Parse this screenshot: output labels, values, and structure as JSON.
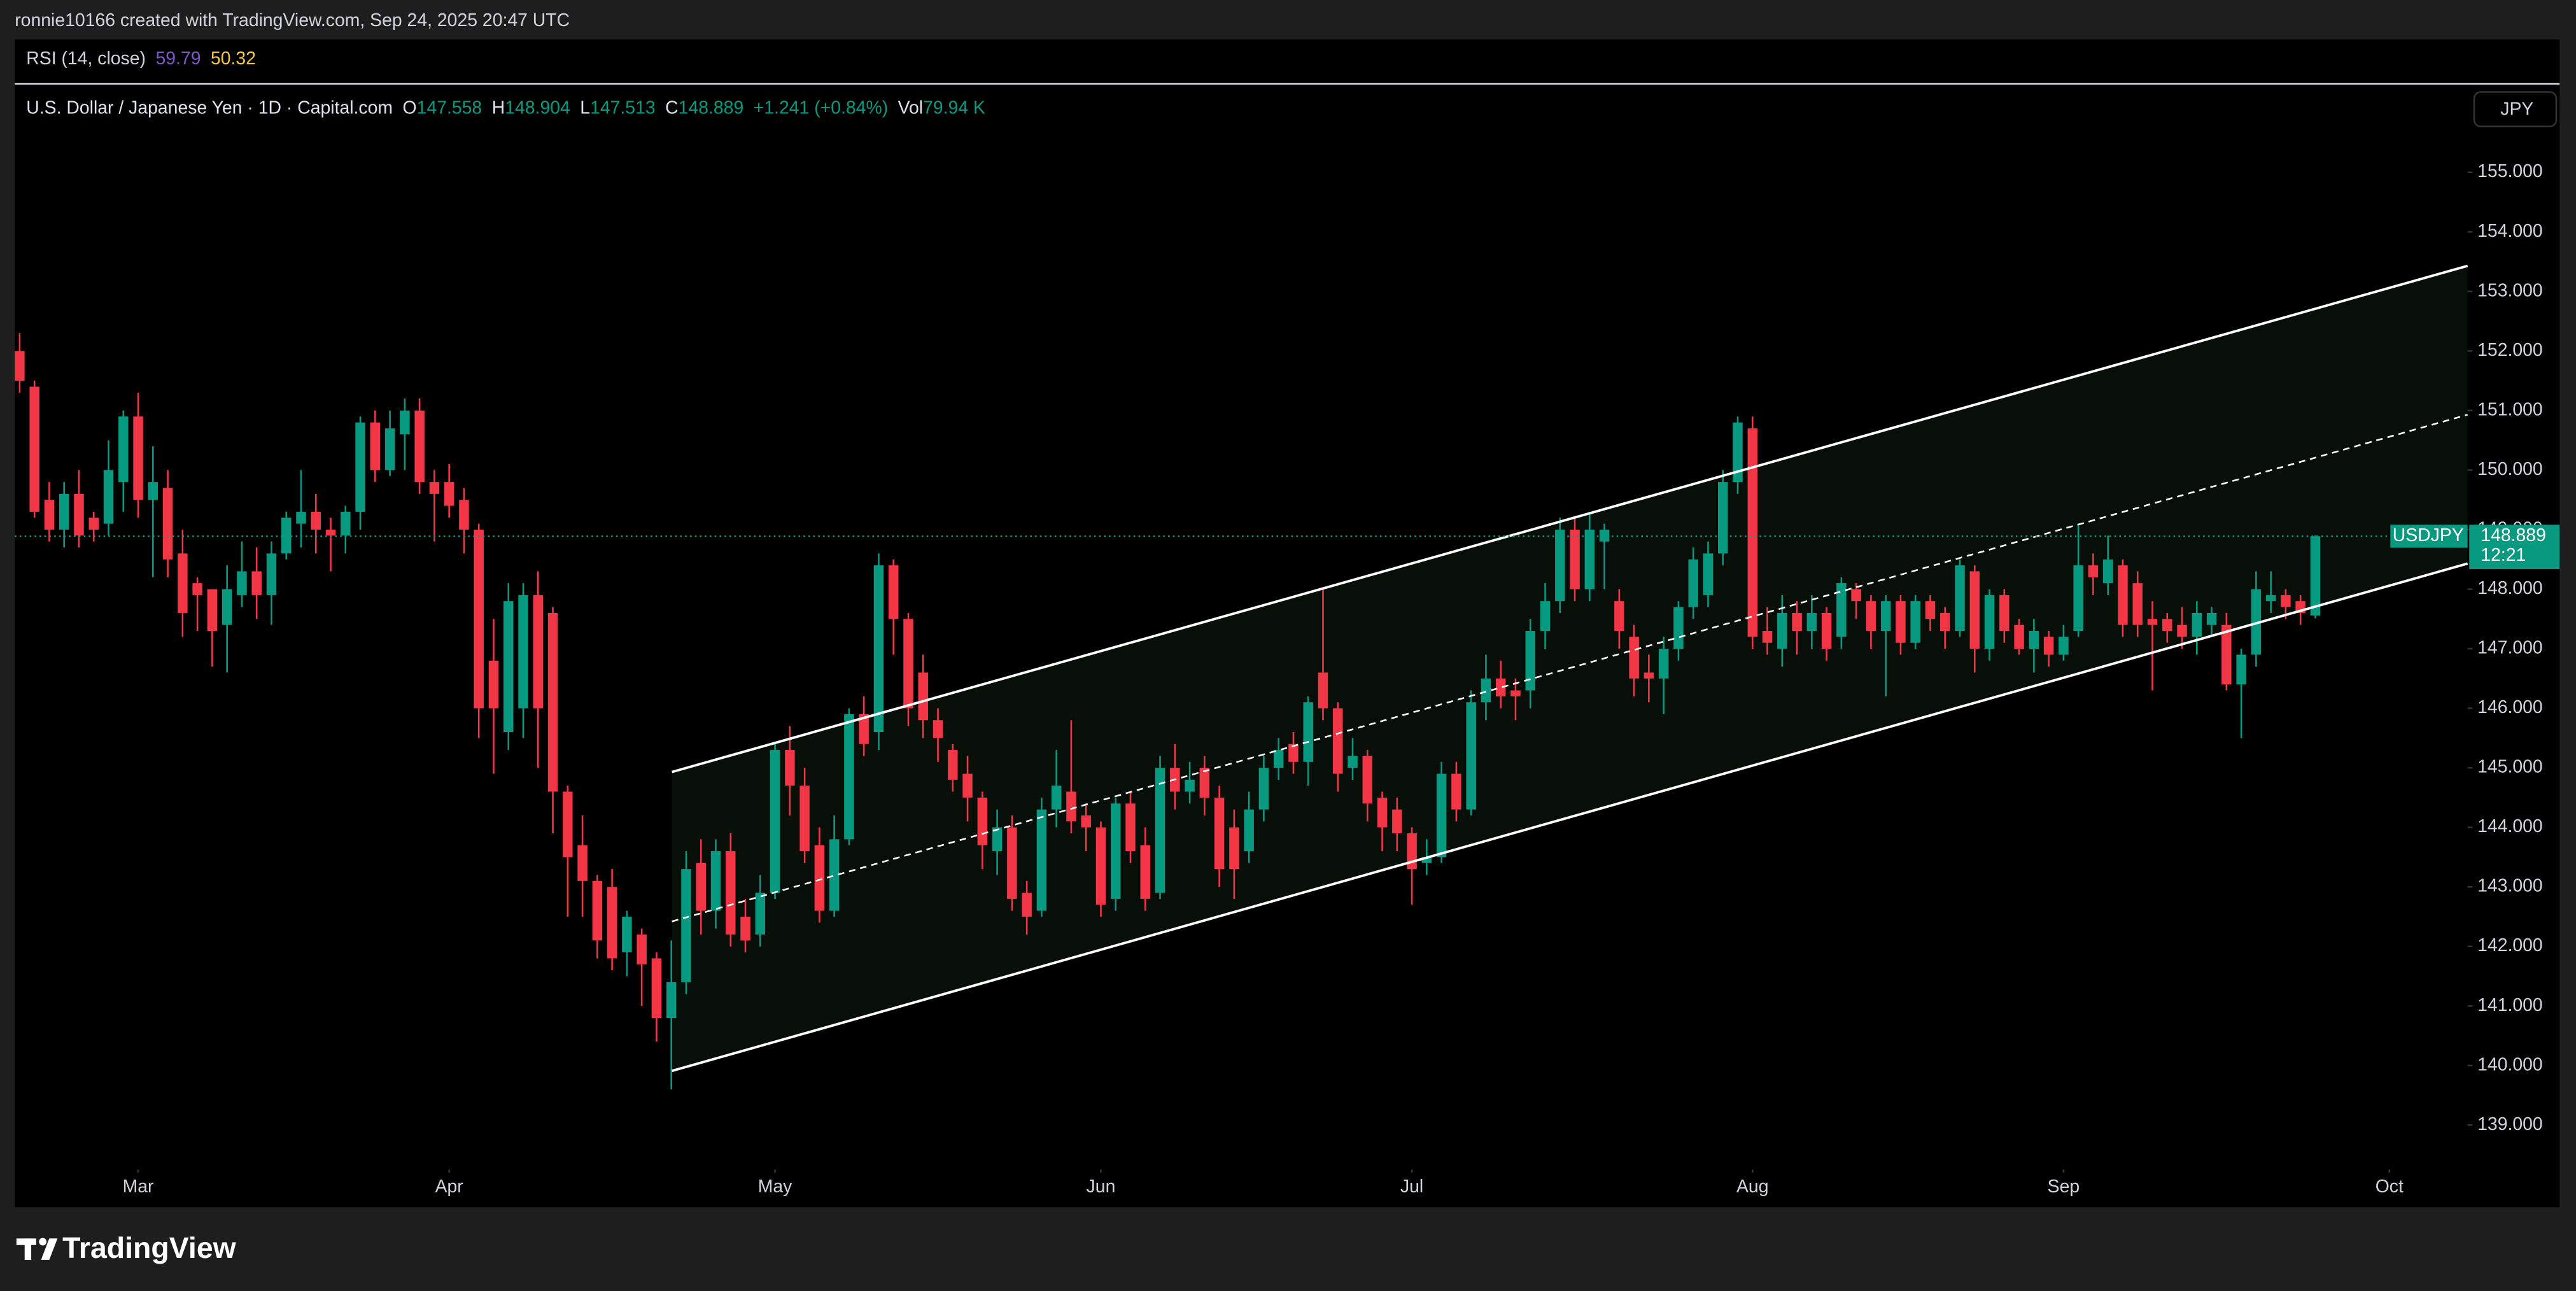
{
  "header": {
    "credit": "ronnie10166 created with TradingView.com, Sep 24, 2025 20:47 UTC",
    "logo": "TradingView"
  },
  "rsi": {
    "label": "RSI (14, close)",
    "values": [
      59.79,
      50.32
    ],
    "colors": [
      "#7e57c2",
      "#f6c745"
    ]
  },
  "chart_data": {
    "type": "candlestick",
    "title": "U.S. Dollar / Japanese Yen · 1D · Capital.com",
    "symbol": "USDJPY",
    "currency": "JPY",
    "field_labels": [
      "O",
      "H",
      "L",
      "C"
    ],
    "change": "+1.241 (+0.84%)",
    "volume_label": "Vol",
    "volume": "79.94 K",
    "countdown": "12:21",
    "up_color": "#089981",
    "down_color": "#f23645",
    "open": [
      152.0,
      151.4,
      149.5,
      149.0,
      149.6,
      149.2,
      149.1,
      149.8,
      150.9,
      149.5,
      149.7,
      148.6,
      148.1,
      148.0,
      147.4,
      147.9,
      148.3,
      147.9,
      148.6,
      149.1,
      149.3,
      149.0,
      148.9,
      149.3,
      150.8,
      150.0,
      150.6,
      151.0,
      149.8,
      149.8,
      149.5,
      149.0,
      146.8,
      145.6,
      146.0,
      147.9,
      147.6,
      144.6,
      143.7,
      143.1,
      143.0,
      141.9,
      142.2,
      141.8,
      140.8,
      141.4,
      143.4,
      142.6,
      143.6,
      142.5,
      142.2,
      142.9,
      145.3,
      144.7,
      143.7,
      142.6,
      143.8,
      145.9,
      145.6,
      148.4,
      147.5,
      146.6,
      145.8,
      145.3,
      144.9,
      144.5,
      143.6,
      144.0,
      142.9,
      142.6,
      144.3,
      144.6,
      144.2,
      144.0,
      142.8,
      144.4,
      143.7,
      142.9,
      145.0,
      144.6,
      145.0,
      144.5,
      144.0,
      143.6,
      144.3,
      145.0,
      145.4,
      145.1,
      146.6,
      146.0,
      145.0,
      145.2,
      144.5,
      144.3,
      143.9,
      143.4,
      143.5,
      144.9,
      144.3,
      146.1,
      146.5,
      146.3,
      146.3,
      147.3,
      147.8,
      149.0,
      148.0,
      148.8,
      147.8,
      147.2,
      146.6,
      146.5,
      147.0,
      147.7,
      147.9,
      148.6,
      149.8,
      150.7,
      147.3,
      147.0,
      147.6,
      147.3,
      147.6,
      147.2,
      148.0,
      147.8,
      147.3,
      147.8,
      147.1,
      147.8,
      147.6,
      147.3,
      148.3,
      147.0,
      147.9,
      147.4,
      147.0,
      147.2,
      146.9,
      147.3,
      148.4,
      148.1,
      148.4,
      148.1,
      147.5,
      147.5,
      147.4,
      147.2,
      147.4,
      147.4,
      146.4,
      146.9,
      147.8,
      147.9,
      147.8,
      147.558
    ],
    "high": [
      152.3,
      151.5,
      149.8,
      149.8,
      150.0,
      149.3,
      150.5,
      151.0,
      151.3,
      150.4,
      150.0,
      149.0,
      148.2,
      148.0,
      148.4,
      148.8,
      148.7,
      148.8,
      149.3,
      150.0,
      149.6,
      149.2,
      149.4,
      150.9,
      151.0,
      151.0,
      151.2,
      151.2,
      150.0,
      150.1,
      149.7,
      149.1,
      147.5,
      148.1,
      148.1,
      148.3,
      147.7,
      144.7,
      144.2,
      143.2,
      143.3,
      142.6,
      142.3,
      141.9,
      142.1,
      143.6,
      143.8,
      143.8,
      143.9,
      142.8,
      143.2,
      145.4,
      145.7,
      145.0,
      144.0,
      144.2,
      146.0,
      146.2,
      148.6,
      148.5,
      147.6,
      146.9,
      146.0,
      145.4,
      145.2,
      144.6,
      144.3,
      144.2,
      143.1,
      144.5,
      145.3,
      145.8,
      144.4,
      144.1,
      144.5,
      144.6,
      144.0,
      145.2,
      145.4,
      145.1,
      145.2,
      144.7,
      144.3,
      144.6,
      145.2,
      145.5,
      145.6,
      146.2,
      148.0,
      146.1,
      145.5,
      145.3,
      144.6,
      144.5,
      144.0,
      143.8,
      145.1,
      145.1,
      146.3,
      146.9,
      146.8,
      146.5,
      147.5,
      148.1,
      149.2,
      149.2,
      149.3,
      149.1,
      148.0,
      147.4,
      146.9,
      147.2,
      147.8,
      148.7,
      148.8,
      150.0,
      150.9,
      150.9,
      147.7,
      147.9,
      147.8,
      147.9,
      147.7,
      148.2,
      148.1,
      147.9,
      147.9,
      147.9,
      147.9,
      147.9,
      147.7,
      148.5,
      148.4,
      148.0,
      148.0,
      147.5,
      147.5,
      147.3,
      147.4,
      149.1,
      148.6,
      148.9,
      148.5,
      148.3,
      147.8,
      147.6,
      147.7,
      147.8,
      147.7,
      147.6,
      147.0,
      148.3,
      148.3,
      148.0,
      147.9,
      148.904
    ],
    "low": [
      151.3,
      149.2,
      148.8,
      148.7,
      148.7,
      148.8,
      148.9,
      149.3,
      149.2,
      148.2,
      148.2,
      147.2,
      147.3,
      146.7,
      146.6,
      147.7,
      147.5,
      147.4,
      148.5,
      148.7,
      148.6,
      148.3,
      148.6,
      149.0,
      149.8,
      149.9,
      150.0,
      149.6,
      148.8,
      149.2,
      148.6,
      145.5,
      144.9,
      145.3,
      145.5,
      145.0,
      143.9,
      142.5,
      142.5,
      141.8,
      141.6,
      141.5,
      141.0,
      140.4,
      139.6,
      141.2,
      142.2,
      142.3,
      142.0,
      141.9,
      142.0,
      142.8,
      144.2,
      143.4,
      142.4,
      142.5,
      143.7,
      145.2,
      145.3,
      146.9,
      145.7,
      145.5,
      145.1,
      144.6,
      144.1,
      143.3,
      143.2,
      142.6,
      142.2,
      142.5,
      144.0,
      143.9,
      143.6,
      142.5,
      142.6,
      143.4,
      142.6,
      142.8,
      144.3,
      144.4,
      144.2,
      143.0,
      142.8,
      143.4,
      144.1,
      144.8,
      144.9,
      144.7,
      145.8,
      144.6,
      144.8,
      144.1,
      143.6,
      143.6,
      142.7,
      143.2,
      143.4,
      144.1,
      144.2,
      145.8,
      146.0,
      145.8,
      146.0,
      147.0,
      147.6,
      147.8,
      147.8,
      148.0,
      147.0,
      146.2,
      146.1,
      145.9,
      146.8,
      147.5,
      147.7,
      148.4,
      149.6,
      147.0,
      146.9,
      146.7,
      146.9,
      147.0,
      146.8,
      147.0,
      147.5,
      147.0,
      146.2,
      146.9,
      147.0,
      147.3,
      147.0,
      147.2,
      146.6,
      146.8,
      147.1,
      146.9,
      146.6,
      146.7,
      146.8,
      147.2,
      147.9,
      147.9,
      147.2,
      147.2,
      146.3,
      147.1,
      147.0,
      146.9,
      147.2,
      146.3,
      145.5,
      146.7,
      147.6,
      147.5,
      147.4,
      147.513
    ],
    "close": [
      151.5,
      149.3,
      149.0,
      149.6,
      148.9,
      149.0,
      150.0,
      150.9,
      149.5,
      149.8,
      148.5,
      147.6,
      147.9,
      147.3,
      148.0,
      148.3,
      147.9,
      148.6,
      149.2,
      149.3,
      149.0,
      148.9,
      149.3,
      150.8,
      150.0,
      150.7,
      151.0,
      149.8,
      149.6,
      149.4,
      149.0,
      146.0,
      146.0,
      147.8,
      147.9,
      146.0,
      144.6,
      143.5,
      143.1,
      142.1,
      141.8,
      142.5,
      141.7,
      140.8,
      141.4,
      143.3,
      142.6,
      143.6,
      142.2,
      142.1,
      142.9,
      145.3,
      144.7,
      143.6,
      142.6,
      143.8,
      145.9,
      145.4,
      148.4,
      147.5,
      146.0,
      145.8,
      145.5,
      144.8,
      144.5,
      143.7,
      144.0,
      142.8,
      142.5,
      144.3,
      144.7,
      144.1,
      144.0,
      142.7,
      144.4,
      143.6,
      142.8,
      145.0,
      144.6,
      144.8,
      144.5,
      143.3,
      143.3,
      144.3,
      145.0,
      145.3,
      145.1,
      146.1,
      146.0,
      144.9,
      145.2,
      144.4,
      144.0,
      143.9,
      143.3,
      143.5,
      144.9,
      144.3,
      146.1,
      146.5,
      146.2,
      146.2,
      147.3,
      147.8,
      149.0,
      148.0,
      149.0,
      149.0,
      147.3,
      146.5,
      146.5,
      147.0,
      147.7,
      148.5,
      148.6,
      149.8,
      150.8,
      147.2,
      147.1,
      147.6,
      147.3,
      147.6,
      147.0,
      148.1,
      147.8,
      147.3,
      147.8,
      147.1,
      147.8,
      147.5,
      147.3,
      148.4,
      147.0,
      147.9,
      147.3,
      147.0,
      147.3,
      146.9,
      147.2,
      148.4,
      148.2,
      148.5,
      147.4,
      147.4,
      147.4,
      147.3,
      147.2,
      147.6,
      147.6,
      146.4,
      146.9,
      148.0,
      147.9,
      147.7,
      147.6,
      148.889
    ],
    "xlim": [
      -0.33,
      165.28
    ],
    "ylim": [
      138.31,
      156.46
    ],
    "xticks": [
      {
        "value": 8,
        "label": "Mar"
      },
      {
        "value": 29,
        "label": "Apr"
      },
      {
        "value": 51,
        "label": "May"
      },
      {
        "value": 73,
        "label": "Jun"
      },
      {
        "value": 94,
        "label": "Jul"
      },
      {
        "value": 117,
        "label": "Aug"
      },
      {
        "value": 138,
        "label": "Sep"
      },
      {
        "value": 160,
        "label": "Oct"
      }
    ],
    "yticks": [
      {
        "value": 139,
        "label": "139.000"
      },
      {
        "value": 140,
        "label": "140.000"
      },
      {
        "value": 141,
        "label": "141.000"
      },
      {
        "value": 142,
        "label": "142.000"
      },
      {
        "value": 143,
        "label": "143.000"
      },
      {
        "value": 144,
        "label": "144.000"
      },
      {
        "value": 145,
        "label": "145.000"
      },
      {
        "value": 146,
        "label": "146.000"
      },
      {
        "value": 147,
        "label": "147.000"
      },
      {
        "value": 148,
        "label": "148.000"
      },
      {
        "value": 149,
        "label": "149.000"
      },
      {
        "value": 150,
        "label": "150.000"
      },
      {
        "value": 151,
        "label": "151.000"
      },
      {
        "value": 152,
        "label": "152.000"
      },
      {
        "value": 153,
        "label": "153.000"
      },
      {
        "value": 154,
        "label": "154.000"
      },
      {
        "value": 155,
        "label": "155.000"
      }
    ],
    "channel": {
      "x": [
        44.04,
        165.28
      ],
      "upper": [
        144.93,
        153.43
      ],
      "lower": [
        139.91,
        148.43
      ],
      "color": "#ffffff"
    }
  }
}
